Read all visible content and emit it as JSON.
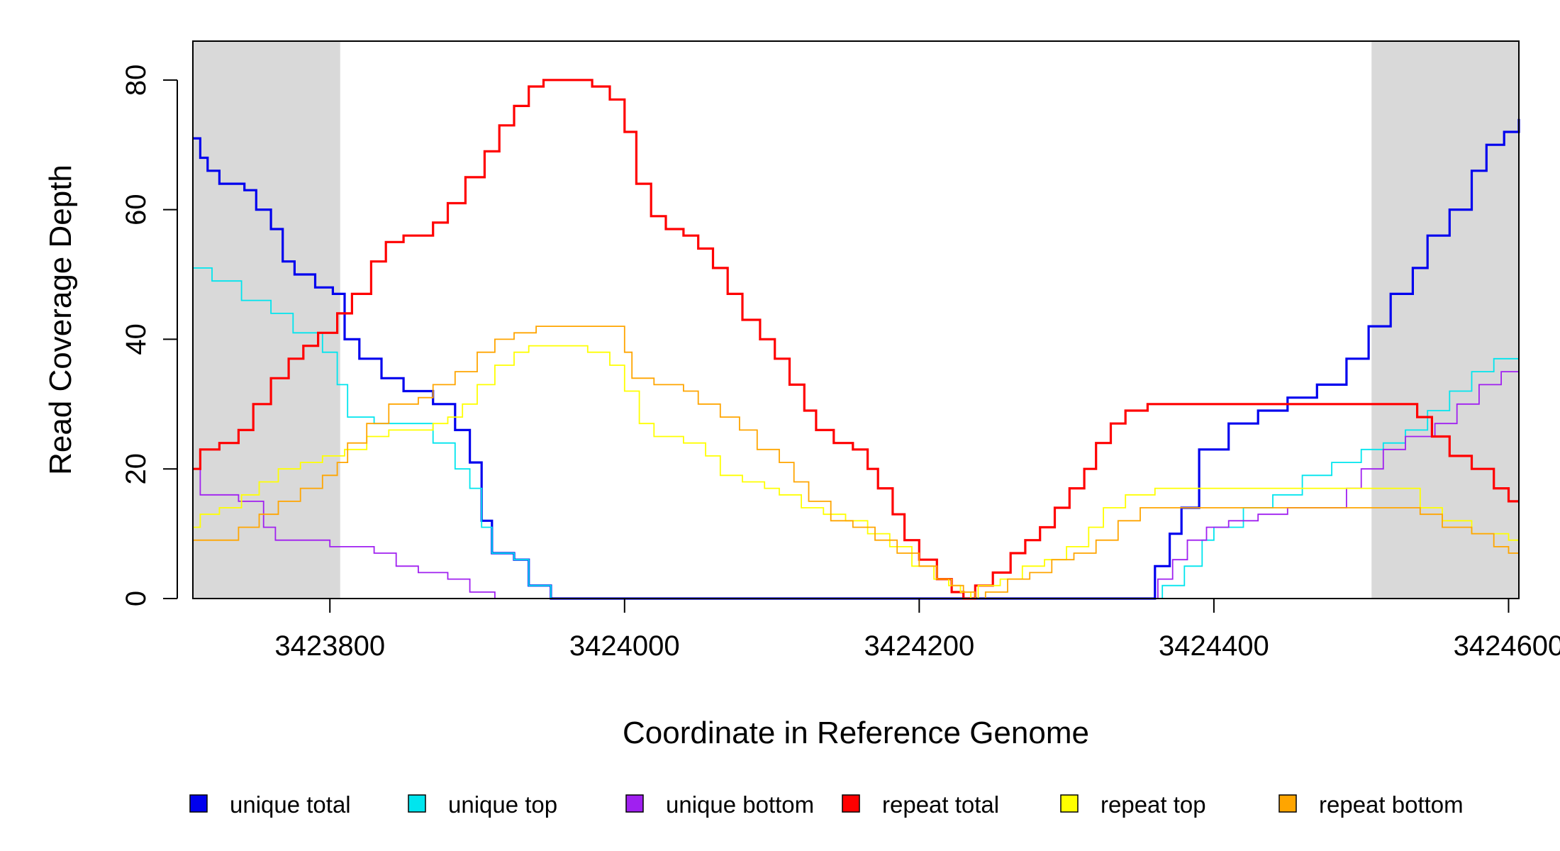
{
  "chart_data": {
    "type": "line",
    "title": "",
    "xlabel": "Coordinate in Reference Genome",
    "ylabel": "Read Coverage Depth",
    "xlim": [
      3423707,
      3424607
    ],
    "ylim": [
      0,
      86
    ],
    "x_ticks": [
      3423800,
      3424000,
      3424200,
      3424400,
      3424600
    ],
    "x_tick_labels": [
      "3423800",
      "3424000",
      "3424200",
      "3424400",
      "3424600"
    ],
    "y_ticks": [
      0,
      20,
      40,
      60,
      80
    ],
    "y_tick_labels": [
      "0",
      "20",
      "40",
      "60",
      "80"
    ],
    "shaded_regions": [
      {
        "from": 3423707,
        "to": 3423807,
        "color": "#d9d9d9"
      },
      {
        "from": 3424507,
        "to": 3424607,
        "color": "#d9d9d9"
      }
    ],
    "legend_position": "bottom",
    "series": [
      {
        "name": "unique total",
        "color": "#0000ee",
        "points": [
          [
            3423707,
            71
          ],
          [
            3423712,
            68
          ],
          [
            3423717,
            66
          ],
          [
            3423725,
            64
          ],
          [
            3423742,
            63
          ],
          [
            3423750,
            60
          ],
          [
            3423760,
            57
          ],
          [
            3423768,
            52
          ],
          [
            3423776,
            50
          ],
          [
            3423790,
            48
          ],
          [
            3423802,
            47
          ],
          [
            3423810,
            40
          ],
          [
            3423820,
            37
          ],
          [
            3423835,
            34
          ],
          [
            3423850,
            32
          ],
          [
            3423870,
            30
          ],
          [
            3423885,
            26
          ],
          [
            3423895,
            21
          ],
          [
            3423903,
            12
          ],
          [
            3423910,
            7
          ],
          [
            3423925,
            6
          ],
          [
            3423935,
            2
          ],
          [
            3423950,
            0
          ],
          [
            3424355,
            0
          ],
          [
            3424360,
            5
          ],
          [
            3424370,
            10
          ],
          [
            3424378,
            14
          ],
          [
            3424390,
            23
          ],
          [
            3424410,
            27
          ],
          [
            3424430,
            29
          ],
          [
            3424450,
            31
          ],
          [
            3424470,
            33
          ],
          [
            3424490,
            37
          ],
          [
            3424505,
            42
          ],
          [
            3424520,
            47
          ],
          [
            3424535,
            51
          ],
          [
            3424545,
            56
          ],
          [
            3424560,
            60
          ],
          [
            3424575,
            66
          ],
          [
            3424585,
            70
          ],
          [
            3424597,
            72
          ],
          [
            3424607,
            74
          ]
        ]
      },
      {
        "name": "unique top",
        "color": "#00e5ee",
        "points": [
          [
            3423707,
            51
          ],
          [
            3423720,
            49
          ],
          [
            3423740,
            46
          ],
          [
            3423760,
            44
          ],
          [
            3423775,
            41
          ],
          [
            3423795,
            38
          ],
          [
            3423805,
            33
          ],
          [
            3423812,
            28
          ],
          [
            3423830,
            27
          ],
          [
            3423850,
            27
          ],
          [
            3423870,
            24
          ],
          [
            3423885,
            20
          ],
          [
            3423895,
            17
          ],
          [
            3423903,
            11
          ],
          [
            3423910,
            7
          ],
          [
            3423925,
            6
          ],
          [
            3423935,
            2
          ],
          [
            3423950,
            0
          ],
          [
            3424357,
            0
          ],
          [
            3424365,
            2
          ],
          [
            3424380,
            5
          ],
          [
            3424392,
            9
          ],
          [
            3424400,
            11
          ],
          [
            3424420,
            14
          ],
          [
            3424440,
            16
          ],
          [
            3424460,
            19
          ],
          [
            3424480,
            21
          ],
          [
            3424500,
            23
          ],
          [
            3424515,
            24
          ],
          [
            3424530,
            26
          ],
          [
            3424545,
            29
          ],
          [
            3424560,
            32
          ],
          [
            3424575,
            35
          ],
          [
            3424590,
            37
          ],
          [
            3424607,
            37
          ]
        ]
      },
      {
        "name": "unique bottom",
        "color": "#a020f0",
        "points": [
          [
            3423707,
            20
          ],
          [
            3423712,
            16
          ],
          [
            3423738,
            15
          ],
          [
            3423755,
            11
          ],
          [
            3423763,
            9
          ],
          [
            3423800,
            8
          ],
          [
            3423830,
            7
          ],
          [
            3423845,
            5
          ],
          [
            3423860,
            4
          ],
          [
            3423880,
            3
          ],
          [
            3423895,
            1
          ],
          [
            3423912,
            0
          ],
          [
            3424357,
            0
          ],
          [
            3424362,
            3
          ],
          [
            3424372,
            6
          ],
          [
            3424382,
            9
          ],
          [
            3424395,
            11
          ],
          [
            3424410,
            12
          ],
          [
            3424430,
            13
          ],
          [
            3424450,
            14
          ],
          [
            3424470,
            14
          ],
          [
            3424490,
            17
          ],
          [
            3424500,
            20
          ],
          [
            3424515,
            23
          ],
          [
            3424530,
            25
          ],
          [
            3424550,
            27
          ],
          [
            3424565,
            30
          ],
          [
            3424580,
            33
          ],
          [
            3424595,
            35
          ],
          [
            3424607,
            37
          ]
        ]
      },
      {
        "name": "repeat total",
        "color": "#ff0000",
        "points": [
          [
            3423707,
            20
          ],
          [
            3423712,
            23
          ],
          [
            3423725,
            24
          ],
          [
            3423738,
            26
          ],
          [
            3423748,
            30
          ],
          [
            3423760,
            34
          ],
          [
            3423772,
            37
          ],
          [
            3423782,
            39
          ],
          [
            3423792,
            41
          ],
          [
            3423805,
            44
          ],
          [
            3423815,
            47
          ],
          [
            3423828,
            52
          ],
          [
            3423838,
            55
          ],
          [
            3423850,
            56
          ],
          [
            3423870,
            58
          ],
          [
            3423880,
            61
          ],
          [
            3423892,
            65
          ],
          [
            3423905,
            69
          ],
          [
            3423915,
            73
          ],
          [
            3423925,
            76
          ],
          [
            3423935,
            79
          ],
          [
            3423945,
            80
          ],
          [
            3423960,
            80
          ],
          [
            3423978,
            79
          ],
          [
            3423990,
            77
          ],
          [
            3424000,
            72
          ],
          [
            3424008,
            64
          ],
          [
            3424018,
            59
          ],
          [
            3424028,
            57
          ],
          [
            3424040,
            56
          ],
          [
            3424050,
            54
          ],
          [
            3424060,
            51
          ],
          [
            3424070,
            47
          ],
          [
            3424080,
            43
          ],
          [
            3424092,
            40
          ],
          [
            3424102,
            37
          ],
          [
            3424112,
            33
          ],
          [
            3424122,
            29
          ],
          [
            3424130,
            26
          ],
          [
            3424142,
            24
          ],
          [
            3424155,
            23
          ],
          [
            3424165,
            20
          ],
          [
            3424172,
            17
          ],
          [
            3424182,
            13
          ],
          [
            3424190,
            9
          ],
          [
            3424200,
            6
          ],
          [
            3424212,
            3
          ],
          [
            3424222,
            1
          ],
          [
            3424230,
            0
          ],
          [
            3424238,
            2
          ],
          [
            3424250,
            4
          ],
          [
            3424262,
            7
          ],
          [
            3424272,
            9
          ],
          [
            3424282,
            11
          ],
          [
            3424292,
            14
          ],
          [
            3424302,
            17
          ],
          [
            3424312,
            20
          ],
          [
            3424320,
            24
          ],
          [
            3424330,
            27
          ],
          [
            3424340,
            29
          ],
          [
            3424355,
            30
          ],
          [
            3424400,
            30
          ],
          [
            3424450,
            30
          ],
          [
            3424500,
            30
          ],
          [
            3424530,
            30
          ],
          [
            3424538,
            28
          ],
          [
            3424548,
            25
          ],
          [
            3424560,
            22
          ],
          [
            3424575,
            20
          ],
          [
            3424590,
            17
          ],
          [
            3424600,
            15
          ],
          [
            3424607,
            15
          ]
        ]
      },
      {
        "name": "repeat top",
        "color": "#ffff00",
        "points": [
          [
            3423707,
            11
          ],
          [
            3423712,
            13
          ],
          [
            3423725,
            14
          ],
          [
            3423740,
            16
          ],
          [
            3423752,
            18
          ],
          [
            3423765,
            20
          ],
          [
            3423780,
            21
          ],
          [
            3423795,
            22
          ],
          [
            3423810,
            23
          ],
          [
            3423825,
            25
          ],
          [
            3423840,
            26
          ],
          [
            3423870,
            27
          ],
          [
            3423880,
            28
          ],
          [
            3423890,
            30
          ],
          [
            3423900,
            33
          ],
          [
            3423912,
            36
          ],
          [
            3423925,
            38
          ],
          [
            3423935,
            39
          ],
          [
            3423950,
            39
          ],
          [
            3423962,
            39
          ],
          [
            3423975,
            38
          ],
          [
            3423990,
            36
          ],
          [
            3424000,
            32
          ],
          [
            3424010,
            27
          ],
          [
            3424020,
            25
          ],
          [
            3424040,
            24
          ],
          [
            3424055,
            22
          ],
          [
            3424065,
            19
          ],
          [
            3424080,
            18
          ],
          [
            3424095,
            17
          ],
          [
            3424105,
            16
          ],
          [
            3424120,
            14
          ],
          [
            3424135,
            13
          ],
          [
            3424150,
            12
          ],
          [
            3424165,
            10
          ],
          [
            3424180,
            8
          ],
          [
            3424195,
            5
          ],
          [
            3424210,
            3
          ],
          [
            3424220,
            2
          ],
          [
            3424228,
            1
          ],
          [
            3424235,
            0
          ],
          [
            3424240,
            2
          ],
          [
            3424255,
            3
          ],
          [
            3424270,
            5
          ],
          [
            3424285,
            6
          ],
          [
            3424300,
            8
          ],
          [
            3424315,
            11
          ],
          [
            3424325,
            14
          ],
          [
            3424340,
            16
          ],
          [
            3424360,
            17
          ],
          [
            3424400,
            17
          ],
          [
            3424450,
            17
          ],
          [
            3424500,
            17
          ],
          [
            3424530,
            17
          ],
          [
            3424540,
            14
          ],
          [
            3424555,
            12
          ],
          [
            3424575,
            10
          ],
          [
            3424600,
            9
          ],
          [
            3424607,
            9
          ]
        ]
      },
      {
        "name": "repeat bottom",
        "color": "#ffa500",
        "points": [
          [
            3423707,
            9
          ],
          [
            3423720,
            9
          ],
          [
            3423738,
            11
          ],
          [
            3423752,
            13
          ],
          [
            3423765,
            15
          ],
          [
            3423780,
            17
          ],
          [
            3423795,
            19
          ],
          [
            3423805,
            21
          ],
          [
            3423812,
            24
          ],
          [
            3423825,
            27
          ],
          [
            3423840,
            30
          ],
          [
            3423860,
            31
          ],
          [
            3423870,
            33
          ],
          [
            3423885,
            35
          ],
          [
            3423900,
            38
          ],
          [
            3423912,
            40
          ],
          [
            3423925,
            41
          ],
          [
            3423940,
            42
          ],
          [
            3423960,
            42
          ],
          [
            3423990,
            42
          ],
          [
            3424000,
            38
          ],
          [
            3424005,
            34
          ],
          [
            3424020,
            33
          ],
          [
            3424040,
            32
          ],
          [
            3424050,
            30
          ],
          [
            3424065,
            28
          ],
          [
            3424078,
            26
          ],
          [
            3424090,
            23
          ],
          [
            3424105,
            21
          ],
          [
            3424115,
            18
          ],
          [
            3424125,
            15
          ],
          [
            3424140,
            12
          ],
          [
            3424155,
            11
          ],
          [
            3424170,
            9
          ],
          [
            3424185,
            7
          ],
          [
            3424200,
            5
          ],
          [
            3424212,
            3
          ],
          [
            3424222,
            2
          ],
          [
            3424230,
            1
          ],
          [
            3424238,
            0
          ],
          [
            3424245,
            1
          ],
          [
            3424260,
            3
          ],
          [
            3424275,
            4
          ],
          [
            3424290,
            6
          ],
          [
            3424305,
            7
          ],
          [
            3424320,
            9
          ],
          [
            3424335,
            12
          ],
          [
            3424350,
            14
          ],
          [
            3424400,
            14
          ],
          [
            3424450,
            14
          ],
          [
            3424500,
            14
          ],
          [
            3424530,
            14
          ],
          [
            3424540,
            13
          ],
          [
            3424555,
            11
          ],
          [
            3424575,
            10
          ],
          [
            3424590,
            8
          ],
          [
            3424600,
            7
          ],
          [
            3424607,
            7
          ]
        ]
      }
    ]
  }
}
